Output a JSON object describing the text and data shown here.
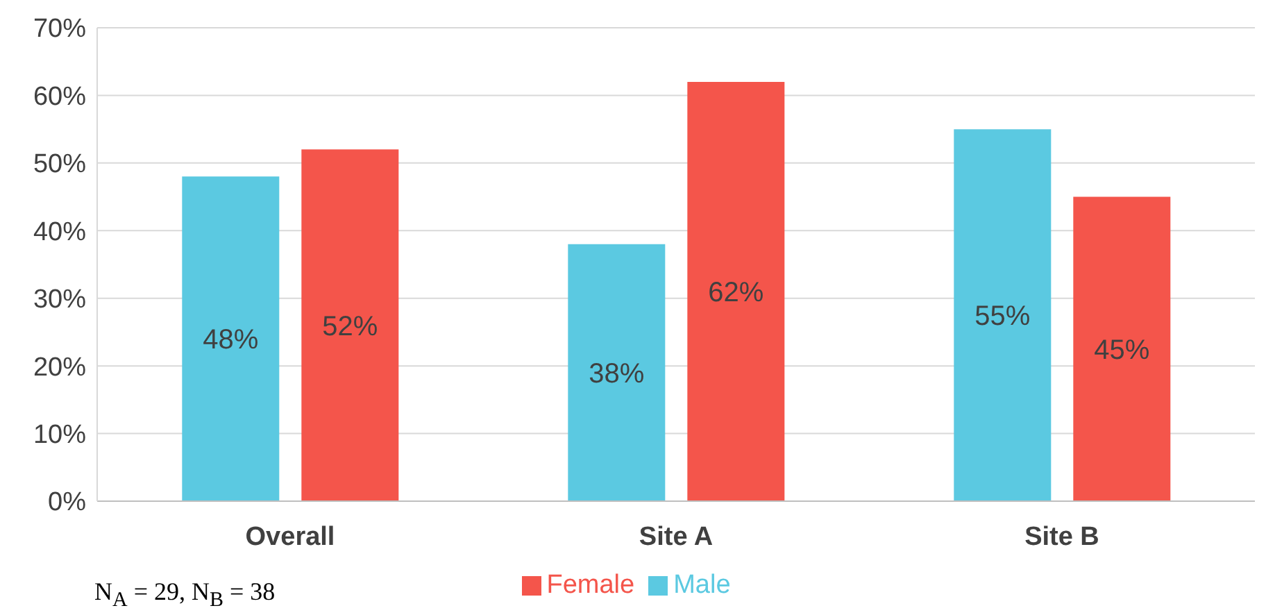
{
  "chart_data": {
    "type": "bar",
    "categories": [
      "Overall",
      "Site A",
      "Site B"
    ],
    "series": [
      {
        "name": "Male",
        "color": "#5bc9e1",
        "values": [
          48,
          38,
          55
        ],
        "value_labels": [
          "48%",
          "38%",
          "55%"
        ]
      },
      {
        "name": "Female",
        "color": "#f4554b",
        "values": [
          52,
          62,
          45
        ],
        "value_labels": [
          "52%",
          "62%",
          "45%"
        ]
      }
    ],
    "ylim": [
      0,
      70
    ],
    "yticks": [
      {
        "value": 0,
        "label": "0%"
      },
      {
        "value": 10,
        "label": "10%"
      },
      {
        "value": 20,
        "label": "20%"
      },
      {
        "value": 30,
        "label": "30%"
      },
      {
        "value": 40,
        "label": "40%"
      },
      {
        "value": 50,
        "label": "50%"
      },
      {
        "value": 60,
        "label": "60%"
      },
      {
        "value": 70,
        "label": "70%"
      }
    ],
    "grid": "y",
    "legend": "bottom",
    "annotations": [
      "N$_{A}$ = 29, N$_{B}$ = 38"
    ]
  }
}
